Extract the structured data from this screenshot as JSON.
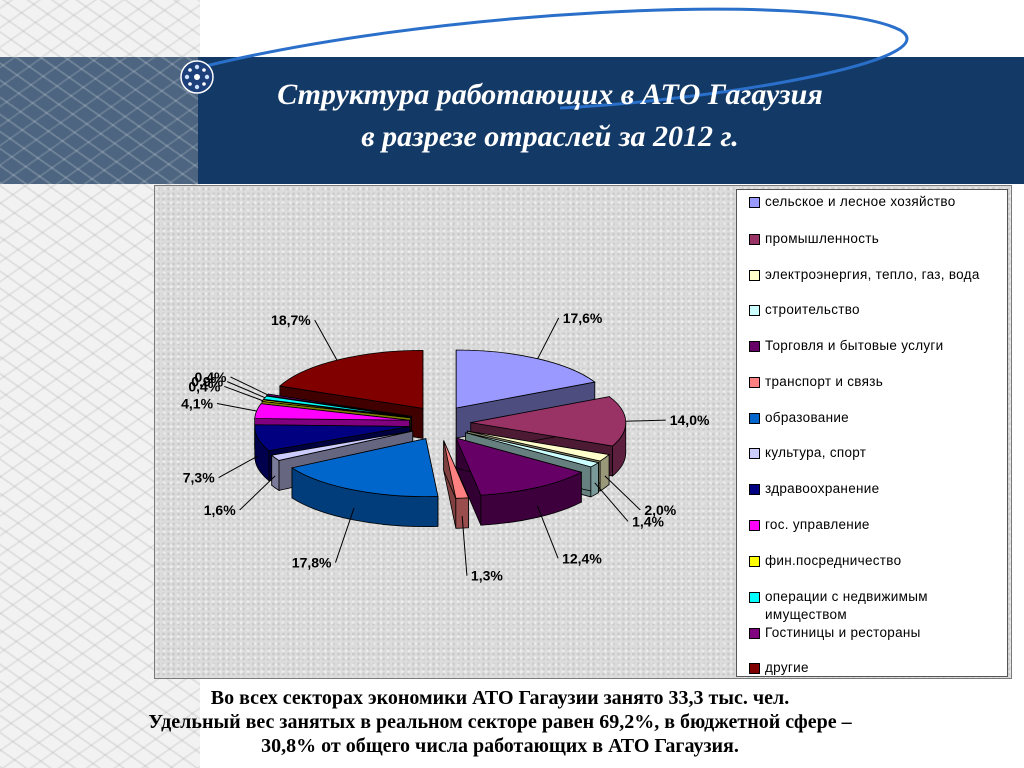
{
  "title": {
    "line1": "Структура работающих в АТО Гагаузия",
    "line2": "в разрезе отраслей за 2012 г."
  },
  "logo": "globe-logo-icon",
  "chart_data": {
    "type": "pie",
    "style": "3d-exploded",
    "legend_position": "right",
    "slices": [
      {
        "name": "сельское и лесное хозяйство",
        "value": 17.6,
        "label": "17,6%",
        "color": "#9999ff"
      },
      {
        "name": "промышленность",
        "value": 14.0,
        "label": "14,0%",
        "color": "#993366"
      },
      {
        "name": "электроэнергия, тепло, газ, вода",
        "value": 2.0,
        "label": "2,0%",
        "color": "#ffffcc"
      },
      {
        "name": "строительство",
        "value": 1.4,
        "label": "1,4%",
        "color": "#ccffff"
      },
      {
        "name": "Торговля и бытовые услуги",
        "value": 12.4,
        "label": "12,4%",
        "color": "#660066"
      },
      {
        "name": "транспорт и связь",
        "value": 1.3,
        "label": "1,3%",
        "color": "#ff8080"
      },
      {
        "name": "образование",
        "value": 17.8,
        "label": "17,8%",
        "color": "#0066cc"
      },
      {
        "name": "культура, спорт",
        "value": 1.6,
        "label": "1,6%",
        "color": "#ccccff"
      },
      {
        "name": "здравоохранение",
        "value": 7.3,
        "label": "7,3%",
        "color": "#000080"
      },
      {
        "name": "гос. управление",
        "value": 4.1,
        "label": "4,1%",
        "color": "#ff00ff"
      },
      {
        "name": "фин.посредничество",
        "value": 0.4,
        "label": "0,4%",
        "color": "#ffff00"
      },
      {
        "name": "операции с недвижимым имуществом",
        "value": 0.9,
        "label": "0,9%",
        "color": "#00ffff"
      },
      {
        "name": "Гостиницы и рестораны",
        "value": 0.4,
        "label": "0,4%",
        "color": "#800080"
      },
      {
        "name": "другие",
        "value": 18.7,
        "label": "18,7%",
        "color": "#800000"
      }
    ]
  },
  "legend": {
    "items": [
      {
        "label": "сельское и лесное хозяйство",
        "color": "#9999ff"
      },
      {
        "label": "промышленность",
        "color": "#993366"
      },
      {
        "label": "электроэнергия, тепло, газ, вода",
        "color": "#ffffcc"
      },
      {
        "label": "строительство",
        "color": "#ccffff"
      },
      {
        "label": "Торговля и бытовые услуги",
        "color": "#660066"
      },
      {
        "label": "транспорт и связь",
        "color": "#ff8080"
      },
      {
        "label": "образование",
        "color": "#0066cc"
      },
      {
        "label": "культура, спорт",
        "color": "#ccccff"
      },
      {
        "label": "здравоохранение",
        "color": "#000080"
      },
      {
        "label": "гос. управление",
        "color": "#ff00ff"
      },
      {
        "label": "фин.посредничество",
        "color": "#ffff00"
      },
      {
        "label": "операции с недвижимым имуществом",
        "color": "#00ffff"
      },
      {
        "label": "Гостиницы и рестораны",
        "color": "#800080"
      },
      {
        "label": "другие",
        "color": "#800000"
      }
    ]
  },
  "footer": {
    "line1": "Во всех секторах экономики АТО Гагаузии занято 33,3 тыс. чел.",
    "line2": "Удельный вес занятых в реальном секторе равен 69,2%, в бюджетной сфере –",
    "line3": "30,8% от общего числа работающих в АТО Гагаузия."
  }
}
